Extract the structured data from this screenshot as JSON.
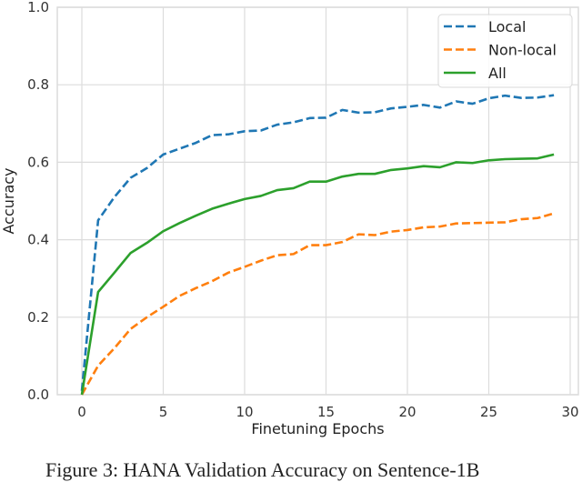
{
  "chart_data": {
    "type": "line",
    "xlabel": "Finetuning Epochs",
    "ylabel": "Accuracy",
    "xlim": [
      -1.5,
      30.5
    ],
    "ylim": [
      0,
      1.0
    ],
    "xticks": [
      0,
      5,
      10,
      15,
      20,
      25,
      30
    ],
    "yticks": [
      0.0,
      0.2,
      0.4,
      0.6,
      0.8,
      1.0
    ],
    "xtick_labels": [
      "0",
      "5",
      "10",
      "15",
      "20",
      "25",
      "30"
    ],
    "ytick_labels": [
      "0.0",
      "0.2",
      "0.4",
      "0.6",
      "0.8",
      "1.0"
    ],
    "grid": true,
    "legend_position": "top-right",
    "x": [
      0,
      1,
      2,
      3,
      4,
      5,
      6,
      7,
      8,
      9,
      10,
      11,
      12,
      13,
      14,
      15,
      16,
      17,
      18,
      19,
      20,
      21,
      22,
      23,
      24,
      25,
      26,
      27,
      28,
      29
    ],
    "series": [
      {
        "name": "Local",
        "color": "#1f77b4",
        "style": "dashed",
        "values": [
          0.01,
          0.45,
          0.51,
          0.56,
          0.585,
          0.62,
          0.635,
          0.65,
          0.67,
          0.672,
          0.68,
          0.682,
          0.697,
          0.703,
          0.714,
          0.715,
          0.735,
          0.728,
          0.729,
          0.739,
          0.743,
          0.748,
          0.741,
          0.757,
          0.751,
          0.765,
          0.772,
          0.766,
          0.767,
          0.773
        ]
      },
      {
        "name": "Non-local",
        "color": "#ff7f0e",
        "style": "dashed",
        "values": [
          0.0,
          0.075,
          0.12,
          0.17,
          0.2,
          0.227,
          0.255,
          0.275,
          0.293,
          0.315,
          0.33,
          0.346,
          0.36,
          0.363,
          0.386,
          0.386,
          0.394,
          0.414,
          0.412,
          0.421,
          0.425,
          0.432,
          0.434,
          0.442,
          0.443,
          0.444,
          0.445,
          0.453,
          0.456,
          0.468
        ]
      },
      {
        "name": "All",
        "color": "#2ca02c",
        "style": "solid",
        "values": [
          0.0,
          0.265,
          0.315,
          0.366,
          0.392,
          0.422,
          0.443,
          0.462,
          0.48,
          0.493,
          0.505,
          0.513,
          0.528,
          0.533,
          0.55,
          0.55,
          0.563,
          0.57,
          0.57,
          0.58,
          0.584,
          0.59,
          0.587,
          0.6,
          0.598,
          0.605,
          0.608,
          0.609,
          0.61,
          0.62
        ]
      }
    ]
  },
  "caption": "Figure 3: HANA Validation Accuracy on Sentence-1B"
}
